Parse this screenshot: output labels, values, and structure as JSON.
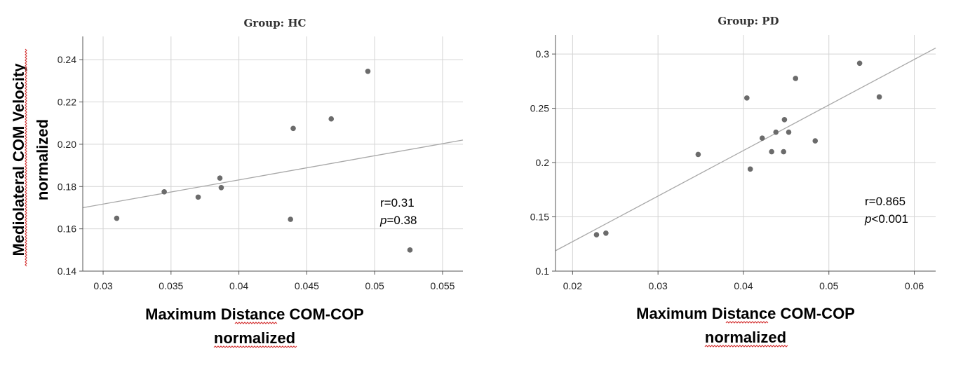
{
  "chart_data": [
    {
      "type": "scatter",
      "title": "Group: HC",
      "xlabel": [
        "Maximum Distance COM-COP",
        "normalized"
      ],
      "ylabel": [
        "Mediolateral COM Velocity",
        "normalized"
      ],
      "xlim": [
        0.0285,
        0.0565
      ],
      "ylim": [
        0.14,
        0.251
      ],
      "xticks": [
        0.03,
        0.035,
        0.04,
        0.045,
        0.05,
        0.055
      ],
      "xtick_labels": [
        "0.03",
        "0.035",
        "0.04",
        "0.045",
        "0.05",
        "0.055"
      ],
      "yticks": [
        0.14,
        0.16,
        0.18,
        0.2,
        0.22,
        0.24
      ],
      "ytick_labels": [
        "0.14",
        "0.16",
        "0.18",
        "0.20",
        "0.22",
        "0.24"
      ],
      "grid": true,
      "points": [
        {
          "x": 0.031,
          "y": 0.165
        },
        {
          "x": 0.0345,
          "y": 0.1775
        },
        {
          "x": 0.037,
          "y": 0.175
        },
        {
          "x": 0.0386,
          "y": 0.184
        },
        {
          "x": 0.0387,
          "y": 0.1795
        },
        {
          "x": 0.0438,
          "y": 0.1645
        },
        {
          "x": 0.044,
          "y": 0.2075
        },
        {
          "x": 0.0468,
          "y": 0.212
        },
        {
          "x": 0.0495,
          "y": 0.2345
        },
        {
          "x": 0.0526,
          "y": 0.15
        }
      ],
      "fit_line": {
        "x": [
          0.0285,
          0.0565
        ],
        "y": [
          0.17,
          0.202
        ]
      },
      "annotation": {
        "r": "r=0.31",
        "p_symbol": "p",
        "p_value": "=0.38"
      }
    },
    {
      "type": "scatter",
      "title": "Group: PD",
      "xlabel": [
        "Maximum Distance COM-COP",
        "normalized"
      ],
      "ylabel": [],
      "xlim": [
        0.018,
        0.0625
      ],
      "ylim": [
        0.1,
        0.3175
      ],
      "xticks": [
        0.02,
        0.03,
        0.04,
        0.05,
        0.06
      ],
      "xtick_labels": [
        "0.02",
        "0.03",
        "0.04",
        "0.05",
        "0.06"
      ],
      "yticks": [
        0.1,
        0.15,
        0.2,
        0.25,
        0.3
      ],
      "ytick_labels": [
        "0.1",
        "0.15",
        "0.2",
        "0.25",
        "0.3"
      ],
      "grid": true,
      "points": [
        {
          "x": 0.0228,
          "y": 0.1335
        },
        {
          "x": 0.0239,
          "y": 0.135
        },
        {
          "x": 0.0347,
          "y": 0.2075
        },
        {
          "x": 0.0404,
          "y": 0.2595
        },
        {
          "x": 0.0408,
          "y": 0.194
        },
        {
          "x": 0.0422,
          "y": 0.2225
        },
        {
          "x": 0.0433,
          "y": 0.21
        },
        {
          "x": 0.0438,
          "y": 0.228
        },
        {
          "x": 0.0447,
          "y": 0.21
        },
        {
          "x": 0.0448,
          "y": 0.2395
        },
        {
          "x": 0.0453,
          "y": 0.228
        },
        {
          "x": 0.0461,
          "y": 0.2775
        },
        {
          "x": 0.0484,
          "y": 0.22
        },
        {
          "x": 0.0536,
          "y": 0.2915
        },
        {
          "x": 0.0559,
          "y": 0.2605
        }
      ],
      "fit_line": {
        "x": [
          0.018,
          0.0625
        ],
        "y": [
          0.1188,
          0.3055
        ]
      },
      "annotation": {
        "r": "r=0.865",
        "p_symbol": "p",
        "p_value": "<0.001"
      }
    }
  ]
}
